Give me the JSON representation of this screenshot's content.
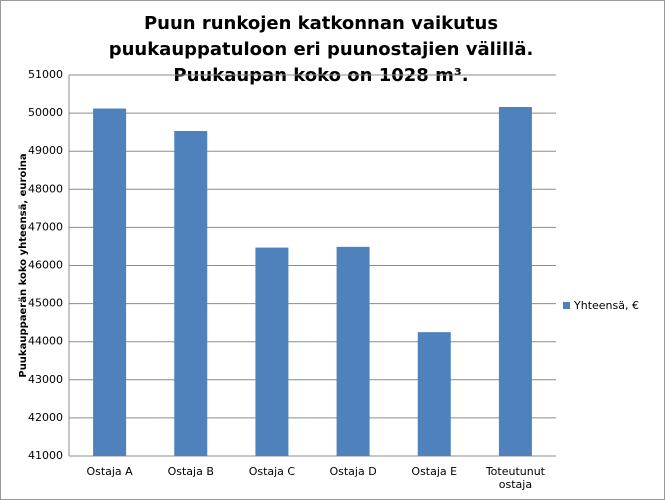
{
  "chart_data": {
    "type": "bar",
    "title": "Puun runkojen katkonnan vaikutus puukauppatuloon eri puunostajien välillä. Puukaupan koko on 1028 m³.",
    "y_label": "Puukauppaerän koko yhteensä, euroina",
    "categories": [
      "Ostaja A",
      "Ostaja B",
      "Ostaja C",
      "Ostaja D",
      "Ostaja E",
      "Toteutunut ostaja"
    ],
    "series": [
      {
        "name": "Yhteensä, €",
        "color": "#4f81bd",
        "values": [
          50120,
          49530,
          46470,
          46490,
          44250,
          50160
        ]
      }
    ],
    "ylim": [
      41000,
      51000
    ],
    "yticks": [
      41000,
      42000,
      43000,
      44000,
      45000,
      46000,
      47000,
      48000,
      49000,
      50000,
      51000
    ],
    "grid": true,
    "legend": "right"
  }
}
